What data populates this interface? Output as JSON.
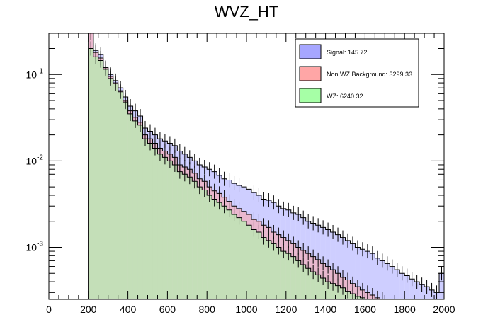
{
  "chart_data": {
    "type": "histogram",
    "title": "WVZ_HT",
    "xlabel": "",
    "ylabel": "",
    "xlim": [
      0,
      2000
    ],
    "ylim": [
      0.00025,
      0.3
    ],
    "yscale": "log",
    "bin_width": 25,
    "x_ticks": [
      0,
      200,
      400,
      600,
      800,
      1000,
      1200,
      1400,
      1600,
      1800,
      2000
    ],
    "x_tick_labels": [
      "0",
      "200",
      "400",
      "600",
      "800",
      "1000",
      "1200",
      "1400",
      "1600",
      "1800",
      "2000"
    ],
    "y_major_ticks": [
      0.001,
      0.01,
      0.1
    ],
    "y_major_labels": [
      {
        "base": "10",
        "exp": "-3"
      },
      {
        "base": "10",
        "exp": "-2"
      },
      {
        "base": "10",
        "exp": "-1"
      }
    ],
    "legend_position": "top-right",
    "series": [
      {
        "name": "Signal",
        "label": "Signal: 145.72",
        "color": "#a6a6ff",
        "bins": [
          [
            200,
            0.3
          ],
          [
            225,
            0.19
          ],
          [
            250,
            0.17
          ],
          [
            275,
            0.12
          ],
          [
            300,
            0.1
          ],
          [
            325,
            0.085
          ],
          [
            350,
            0.07
          ],
          [
            375,
            0.055
          ],
          [
            400,
            0.043
          ],
          [
            425,
            0.038
          ],
          [
            450,
            0.033
          ],
          [
            475,
            0.024
          ],
          [
            500,
            0.022
          ],
          [
            525,
            0.02
          ],
          [
            550,
            0.018
          ],
          [
            575,
            0.017
          ],
          [
            600,
            0.016
          ],
          [
            625,
            0.015
          ],
          [
            650,
            0.013
          ],
          [
            675,
            0.012
          ],
          [
            700,
            0.011
          ],
          [
            725,
            0.01
          ],
          [
            750,
            0.009
          ],
          [
            775,
            0.0085
          ],
          [
            800,
            0.008
          ],
          [
            825,
            0.0075
          ],
          [
            850,
            0.0068
          ],
          [
            875,
            0.0062
          ],
          [
            900,
            0.006
          ],
          [
            925,
            0.0055
          ],
          [
            950,
            0.0052
          ],
          [
            975,
            0.005
          ],
          [
            1000,
            0.0047
          ],
          [
            1025,
            0.0043
          ],
          [
            1050,
            0.004
          ],
          [
            1075,
            0.0036
          ],
          [
            1100,
            0.0035
          ],
          [
            1125,
            0.0033
          ],
          [
            1150,
            0.003
          ],
          [
            1175,
            0.0028
          ],
          [
            1200,
            0.0027
          ],
          [
            1225,
            0.0025
          ],
          [
            1250,
            0.0024
          ],
          [
            1275,
            0.0022
          ],
          [
            1300,
            0.002
          ],
          [
            1325,
            0.0019
          ],
          [
            1350,
            0.0018
          ],
          [
            1375,
            0.0017
          ],
          [
            1400,
            0.0016
          ],
          [
            1425,
            0.0015
          ],
          [
            1450,
            0.0014
          ],
          [
            1475,
            0.0013
          ],
          [
            1500,
            0.0012
          ],
          [
            1525,
            0.0011
          ],
          [
            1550,
            0.001
          ],
          [
            1575,
            0.00095
          ],
          [
            1600,
            0.0009
          ],
          [
            1625,
            0.00085
          ],
          [
            1650,
            0.00075
          ],
          [
            1675,
            0.0007
          ],
          [
            1700,
            0.00065
          ],
          [
            1725,
            0.0006
          ],
          [
            1750,
            0.00055
          ],
          [
            1775,
            0.0005
          ],
          [
            1800,
            0.00047
          ],
          [
            1825,
            0.00043
          ],
          [
            1850,
            0.0004
          ],
          [
            1875,
            0.00037
          ],
          [
            1900,
            0.00035
          ],
          [
            1925,
            0.00032
          ],
          [
            1950,
            0.0003
          ],
          [
            1975,
            0.0005
          ]
        ]
      },
      {
        "name": "Non WZ Background",
        "label": "Non WZ Background: 3299.33",
        "color": "#ffa6a6",
        "bins": [
          [
            200,
            0.3
          ],
          [
            225,
            0.18
          ],
          [
            250,
            0.155
          ],
          [
            275,
            0.12
          ],
          [
            300,
            0.095
          ],
          [
            325,
            0.08
          ],
          [
            350,
            0.065
          ],
          [
            375,
            0.05
          ],
          [
            400,
            0.038
          ],
          [
            425,
            0.032
          ],
          [
            450,
            0.028
          ],
          [
            475,
            0.02
          ],
          [
            500,
            0.018
          ],
          [
            525,
            0.016
          ],
          [
            550,
            0.014
          ],
          [
            575,
            0.013
          ],
          [
            600,
            0.012
          ],
          [
            625,
            0.011
          ],
          [
            650,
            0.009
          ],
          [
            675,
            0.0085
          ],
          [
            700,
            0.008
          ],
          [
            725,
            0.0072
          ],
          [
            750,
            0.0062
          ],
          [
            775,
            0.0058
          ],
          [
            800,
            0.005
          ],
          [
            825,
            0.0045
          ],
          [
            850,
            0.0042
          ],
          [
            875,
            0.0038
          ],
          [
            900,
            0.0034
          ],
          [
            925,
            0.003
          ],
          [
            950,
            0.0028
          ],
          [
            975,
            0.0026
          ],
          [
            1000,
            0.0024
          ],
          [
            1025,
            0.0021
          ],
          [
            1050,
            0.002
          ],
          [
            1075,
            0.0018
          ],
          [
            1100,
            0.0017
          ],
          [
            1125,
            0.0015
          ],
          [
            1150,
            0.0014
          ],
          [
            1175,
            0.0013
          ],
          [
            1200,
            0.0012
          ],
          [
            1225,
            0.0011
          ],
          [
            1250,
            0.001
          ],
          [
            1275,
            0.00092
          ],
          [
            1300,
            0.00085
          ],
          [
            1325,
            0.00078
          ],
          [
            1350,
            0.00072
          ],
          [
            1375,
            0.00065
          ],
          [
            1400,
            0.0006
          ],
          [
            1425,
            0.00055
          ],
          [
            1450,
            0.0005
          ],
          [
            1475,
            0.00045
          ],
          [
            1500,
            0.00042
          ],
          [
            1525,
            0.00038
          ],
          [
            1550,
            0.00035
          ],
          [
            1575,
            0.00032
          ],
          [
            1600,
            0.0003
          ],
          [
            1625,
            0.00028
          ],
          [
            1650,
            0.00026
          ],
          [
            1675,
            0.00025
          ]
        ]
      },
      {
        "name": "WZ",
        "label": "WZ: 6240.32",
        "color": "#a6ffa6",
        "bins": [
          [
            200,
            0.2
          ],
          [
            225,
            0.16
          ],
          [
            250,
            0.145
          ],
          [
            275,
            0.115
          ],
          [
            300,
            0.09
          ],
          [
            325,
            0.078
          ],
          [
            350,
            0.063
          ],
          [
            375,
            0.048
          ],
          [
            400,
            0.035
          ],
          [
            425,
            0.029
          ],
          [
            450,
            0.026
          ],
          [
            475,
            0.018
          ],
          [
            500,
            0.016
          ],
          [
            525,
            0.014
          ],
          [
            550,
            0.012
          ],
          [
            575,
            0.011
          ],
          [
            600,
            0.01
          ],
          [
            625,
            0.009
          ],
          [
            650,
            0.0075
          ],
          [
            675,
            0.007
          ],
          [
            700,
            0.0065
          ],
          [
            725,
            0.0058
          ],
          [
            750,
            0.005
          ],
          [
            775,
            0.0046
          ],
          [
            800,
            0.004
          ],
          [
            825,
            0.0036
          ],
          [
            850,
            0.0033
          ],
          [
            875,
            0.003
          ],
          [
            900,
            0.0027
          ],
          [
            925,
            0.0024
          ],
          [
            950,
            0.0022
          ],
          [
            975,
            0.002
          ],
          [
            1000,
            0.0018
          ],
          [
            1025,
            0.0016
          ],
          [
            1050,
            0.0015
          ],
          [
            1075,
            0.0013
          ],
          [
            1100,
            0.0012
          ],
          [
            1125,
            0.0011
          ],
          [
            1150,
            0.001
          ],
          [
            1175,
            0.0009
          ],
          [
            1200,
            0.00085
          ],
          [
            1225,
            0.00078
          ],
          [
            1250,
            0.0007
          ],
          [
            1275,
            0.00063
          ],
          [
            1300,
            0.00057
          ],
          [
            1325,
            0.00052
          ],
          [
            1350,
            0.00048
          ],
          [
            1375,
            0.00044
          ],
          [
            1400,
            0.0004
          ],
          [
            1425,
            0.00038
          ],
          [
            1450,
            0.00036
          ],
          [
            1475,
            0.00034
          ],
          [
            1500,
            0.00031
          ],
          [
            1525,
            0.00029
          ],
          [
            1550,
            0.00027
          ],
          [
            1575,
            0.00026
          ],
          [
            1600,
            0.00025
          ]
        ]
      }
    ]
  }
}
